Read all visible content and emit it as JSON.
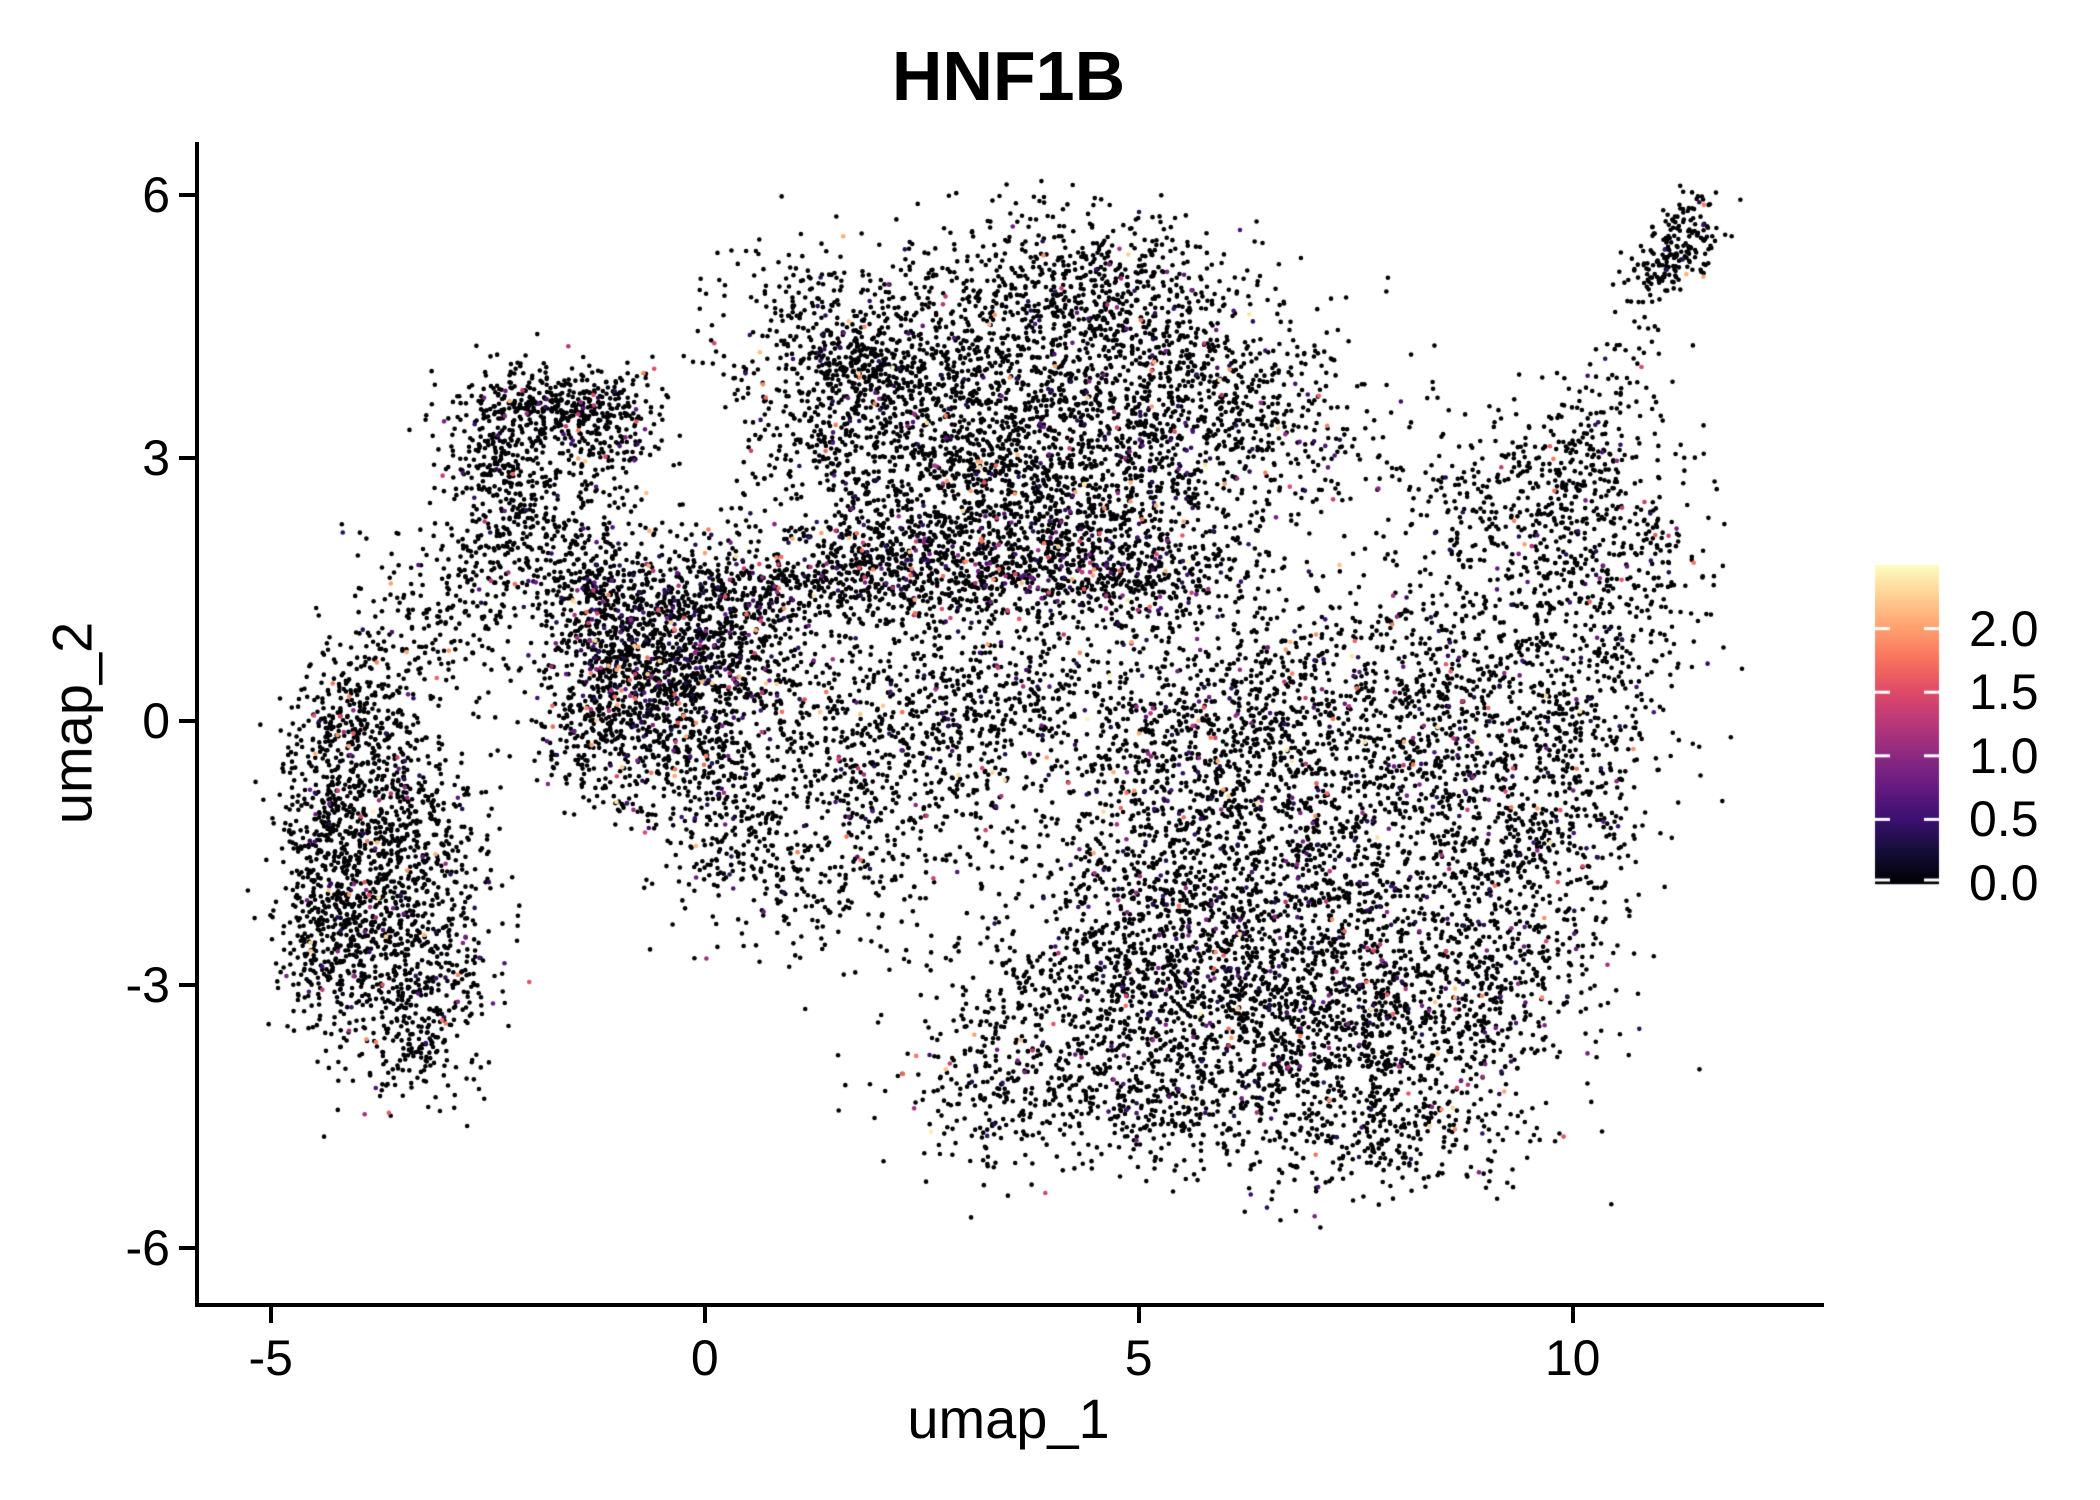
{
  "chart_data": {
    "type": "scatter",
    "title": "HNF1B",
    "xlabel": "umap_1",
    "ylabel": "umap_2",
    "x_ticks": [
      "-5",
      "0",
      "5",
      "10"
    ],
    "x_tick_values": [
      -5,
      0,
      5,
      10
    ],
    "y_ticks": [
      "6",
      "3",
      "0",
      "-3",
      "-6"
    ],
    "y_tick_values": [
      6,
      3,
      0,
      -3,
      -6
    ],
    "x_range": [
      -5.85,
      12.85
    ],
    "y_range": [
      -6.65,
      6.6
    ],
    "grid": false,
    "background": "#ffffff",
    "point_radius_px": 2.3,
    "colors": {
      "axis": "#000000",
      "text": "#000000",
      "colorbar_tick_dash": "#ffffff",
      "zero_expression_point": "#000004"
    },
    "colorbar": {
      "position": "right",
      "min": 0.0,
      "max": 2.5,
      "tick_labels": [
        "2.0",
        "1.5",
        "1.0",
        "0.5",
        "0.0"
      ],
      "tick_values": [
        2.0,
        1.5,
        1.0,
        0.5,
        0.0
      ],
      "colormap": "magma",
      "stops": [
        [
          0.0,
          "#000004"
        ],
        [
          0.1,
          "#140e36"
        ],
        [
          0.2,
          "#3b0f70"
        ],
        [
          0.3,
          "#641a80"
        ],
        [
          0.4,
          "#8c2981"
        ],
        [
          0.5,
          "#b73779"
        ],
        [
          0.6,
          "#de4968"
        ],
        [
          0.7,
          "#f7705c"
        ],
        [
          0.8,
          "#fe9f6d"
        ],
        [
          0.9,
          "#fece91"
        ],
        [
          1.0,
          "#fcfdbf"
        ]
      ]
    },
    "seed": 123,
    "expression_value_model": {
      "base": 0.35,
      "scale": 2.1,
      "power": 2.4,
      "cap": 2.45
    },
    "cluster_fields": [
      "cx",
      "cy",
      "sx",
      "sy",
      "n",
      "rot_deg",
      "colored_fraction"
    ],
    "clusters": [
      [
        -4.35,
        -1.05,
        0.28,
        0.75,
        300,
        0,
        0.05
      ],
      [
        -4.3,
        -2.5,
        0.3,
        0.6,
        280,
        0,
        0.05
      ],
      [
        -3.75,
        -1.8,
        0.5,
        0.85,
        520,
        0,
        0.06
      ],
      [
        -3.15,
        -2.9,
        0.45,
        0.55,
        300,
        0,
        0.05
      ],
      [
        -3.35,
        -1.15,
        0.45,
        0.7,
        280,
        0,
        0.06
      ],
      [
        -4.05,
        0.0,
        0.35,
        0.4,
        190,
        0,
        0.05
      ],
      [
        -3.4,
        -3.8,
        0.3,
        0.3,
        100,
        0,
        0.04
      ],
      [
        -3.6,
        0.85,
        0.4,
        0.55,
        120,
        0,
        0.05
      ],
      [
        -2.35,
        2.1,
        0.3,
        0.85,
        230,
        0,
        0.05
      ],
      [
        -2.9,
        1.4,
        0.35,
        0.5,
        80,
        0,
        0.05
      ],
      [
        -1.75,
        3.62,
        0.52,
        0.22,
        360,
        0,
        0.06
      ],
      [
        -1.05,
        3.25,
        0.35,
        0.33,
        170,
        0,
        0.06
      ],
      [
        -2.45,
        3.05,
        0.4,
        0.28,
        130,
        0,
        0.05
      ],
      [
        -1.95,
        2.45,
        0.45,
        0.38,
        140,
        0,
        0.06
      ],
      [
        -0.75,
        0.85,
        0.55,
        0.62,
        850,
        0,
        0.14
      ],
      [
        -1.25,
        1.55,
        0.4,
        0.35,
        240,
        0,
        0.12
      ],
      [
        -0.2,
        -0.35,
        0.55,
        0.5,
        320,
        0,
        0.08
      ],
      [
        0.45,
        1.35,
        0.5,
        0.45,
        340,
        0,
        0.1
      ],
      [
        -1.3,
        -0.1,
        0.35,
        0.42,
        200,
        0,
        0.08
      ],
      [
        0.05,
        0.5,
        0.5,
        0.45,
        290,
        0,
        0.09
      ],
      [
        3.6,
        3.6,
        1.25,
        0.95,
        1450,
        0,
        0.06
      ],
      [
        4.4,
        5.0,
        0.85,
        0.42,
        430,
        0,
        0.05
      ],
      [
        2.3,
        4.0,
        0.7,
        0.6,
        330,
        0,
        0.06
      ],
      [
        1.45,
        3.35,
        0.6,
        0.6,
        260,
        0,
        0.06
      ],
      [
        1.75,
        4.05,
        0.25,
        0.2,
        110,
        0,
        0.05
      ],
      [
        5.6,
        4.0,
        0.7,
        0.6,
        370,
        0,
        0.06
      ],
      [
        2.9,
        2.4,
        0.9,
        0.45,
        390,
        0,
        0.08
      ],
      [
        1.0,
        4.6,
        0.45,
        0.45,
        130,
        0,
        0.05
      ],
      [
        6.5,
        3.3,
        0.6,
        0.5,
        240,
        0,
        0.07
      ],
      [
        4.6,
        2.6,
        0.9,
        0.5,
        390,
        0,
        0.08
      ],
      [
        1.7,
        1.7,
        0.7,
        0.3,
        330,
        0,
        0.11
      ],
      [
        3.4,
        1.68,
        1.0,
        0.28,
        480,
        0,
        0.13
      ],
      [
        5.0,
        1.7,
        0.8,
        0.3,
        340,
        0,
        0.11
      ],
      [
        1.6,
        0.2,
        0.9,
        0.65,
        360,
        0,
        0.07
      ],
      [
        2.6,
        -0.6,
        0.9,
        0.7,
        400,
        0,
        0.07
      ],
      [
        1.3,
        -1.6,
        0.7,
        0.6,
        250,
        0,
        0.06
      ],
      [
        3.6,
        0.4,
        0.7,
        0.5,
        290,
        0,
        0.08
      ],
      [
        0.3,
        -1.3,
        0.4,
        0.5,
        130,
        0,
        0.06
      ],
      [
        7.2,
        -1.5,
        1.25,
        1.1,
        1450,
        0,
        0.09
      ],
      [
        6.3,
        0.2,
        1.0,
        0.7,
        580,
        0,
        0.09
      ],
      [
        8.6,
        0.3,
        0.8,
        0.7,
        430,
        0,
        0.08
      ],
      [
        9.4,
        -1.2,
        0.6,
        0.9,
        380,
        0,
        0.08
      ],
      [
        5.4,
        -1.1,
        0.7,
        0.8,
        430,
        0,
        0.08
      ],
      [
        6.2,
        -3.3,
        1.0,
        0.7,
        620,
        0,
        0.07
      ],
      [
        7.9,
        -3.4,
        0.8,
        0.6,
        480,
        0,
        0.07
      ],
      [
        5.0,
        -2.4,
        0.7,
        0.6,
        340,
        0,
        0.07
      ],
      [
        7.8,
        -4.6,
        0.8,
        0.4,
        340,
        0,
        0.05
      ],
      [
        9.3,
        -2.9,
        0.6,
        0.7,
        290,
        0,
        0.07
      ],
      [
        10.2,
        -0.1,
        0.45,
        0.9,
        240,
        0,
        0.07
      ],
      [
        10.55,
        1.3,
        0.5,
        0.7,
        170,
        0,
        0.06
      ],
      [
        9.6,
        1.8,
        0.6,
        0.6,
        210,
        0,
        0.07
      ],
      [
        8.9,
        2.6,
        0.8,
        0.6,
        190,
        0,
        0.06
      ],
      [
        4.3,
        -3.3,
        1.0,
        0.6,
        430,
        0,
        0.06
      ],
      [
        3.4,
        -4.3,
        0.55,
        0.45,
        210,
        0,
        0.05
      ],
      [
        5.3,
        -4.35,
        0.7,
        0.45,
        270,
        0,
        0.05
      ],
      [
        10.35,
        3.5,
        0.28,
        0.75,
        120,
        -33,
        0.05
      ],
      [
        11.15,
        5.35,
        0.2,
        0.33,
        210,
        -40,
        0.02
      ],
      [
        10.0,
        2.85,
        0.45,
        0.45,
        120,
        0,
        0.06
      ],
      [
        10.95,
        2.2,
        0.35,
        0.8,
        80,
        0,
        0.05
      ]
    ]
  }
}
